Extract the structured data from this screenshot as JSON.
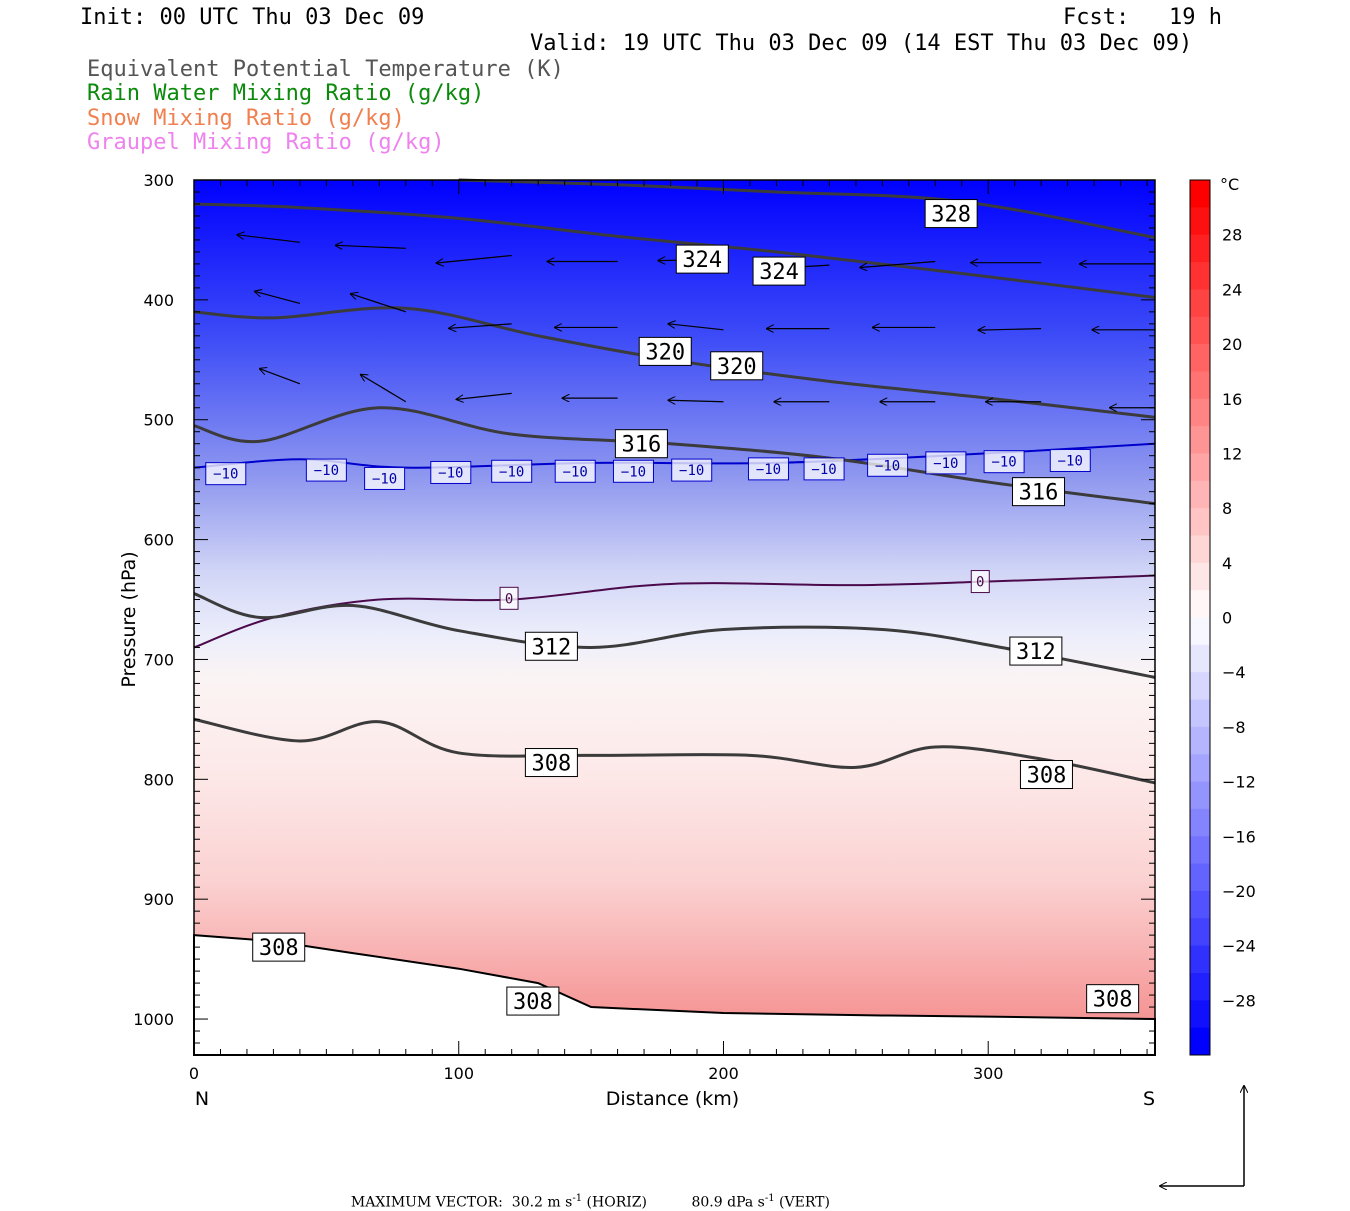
{
  "header": {
    "init": "Init: 00 UTC Thu 03 Dec 09",
    "fcst": "Fcst:   19 h",
    "valid": "Valid: 19 UTC Thu 03 Dec 09 (14 EST Thu 03 Dec 09)",
    "fields": [
      {
        "label": "Equivalent Potential Temperature (K)",
        "color": "#555555"
      },
      {
        "label": "Rain Water Mixing Ratio (g/kg)",
        "color": "#0b8a0b"
      },
      {
        "label": "Snow Mixing Ratio (g/kg)",
        "color": "#f08050"
      },
      {
        "label": "Graupel Mixing Ratio (g/kg)",
        "color": "#ee82ee"
      }
    ]
  },
  "chart_data": {
    "type": "cross-section",
    "xlabel": "Distance (km)",
    "ylabel": "Pressure (hPa)",
    "xlim": [
      0,
      363
    ],
    "ylim": [
      1030,
      300
    ],
    "xticks": [
      0,
      100,
      200,
      300
    ],
    "yticks": [
      300,
      400,
      500,
      600,
      700,
      800,
      900,
      1000
    ],
    "x_end_labels": {
      "left": "N",
      "right": "S"
    },
    "colorbar": {
      "unit": "°C",
      "ticks": [
        28,
        24,
        20,
        16,
        12,
        8,
        4,
        0,
        -4,
        -8,
        -12,
        -16,
        -20,
        -24,
        -28
      ],
      "range": [
        -32,
        32
      ],
      "colors": {
        "cold": "#0000ff",
        "neutral": "#ffffff",
        "warm": "#ff0000"
      }
    },
    "temperature_field_c": [
      {
        "p": 300,
        "t": -44
      },
      {
        "p": 400,
        "t": -32
      },
      {
        "p": 500,
        "t": -20
      },
      {
        "p": 540,
        "t": -10
      },
      {
        "p": 600,
        "t": -5
      },
      {
        "p": 640,
        "t": 0
      },
      {
        "p": 700,
        "t": 2
      },
      {
        "p": 800,
        "t": 6
      },
      {
        "p": 900,
        "t": 11
      },
      {
        "p": 990,
        "t": 15
      }
    ],
    "theta_e_contours_k": [
      {
        "value": 328,
        "points": [
          [
            100,
            300
          ],
          [
            160,
            304
          ],
          [
            220,
            310
          ],
          [
            290,
            318
          ],
          [
            363,
            348
          ]
        ]
      },
      {
        "value": 324,
        "points": [
          [
            0,
            320
          ],
          [
            40,
            323
          ],
          [
            100,
            332
          ],
          [
            160,
            347
          ],
          [
            220,
            360
          ],
          [
            290,
            378
          ],
          [
            363,
            398
          ]
        ]
      },
      {
        "value": 320,
        "points": [
          [
            0,
            410
          ],
          [
            30,
            415
          ],
          [
            80,
            407
          ],
          [
            130,
            430
          ],
          [
            180,
            450
          ],
          [
            240,
            468
          ],
          [
            300,
            482
          ],
          [
            363,
            498
          ]
        ]
      },
      {
        "value": 316,
        "points": [
          [
            0,
            505
          ],
          [
            25,
            518
          ],
          [
            70,
            490
          ],
          [
            120,
            512
          ],
          [
            180,
            520
          ],
          [
            240,
            532
          ],
          [
            300,
            552
          ],
          [
            363,
            570
          ]
        ]
      },
      {
        "value": 312,
        "points": [
          [
            0,
            645
          ],
          [
            25,
            665
          ],
          [
            60,
            655
          ],
          [
            100,
            676
          ],
          [
            150,
            690
          ],
          [
            200,
            675
          ],
          [
            260,
            675
          ],
          [
            310,
            692
          ],
          [
            363,
            715
          ]
        ]
      },
      {
        "value": 308,
        "points": [
          [
            0,
            750
          ],
          [
            40,
            768
          ],
          [
            70,
            752
          ],
          [
            100,
            778
          ],
          [
            150,
            780
          ],
          [
            210,
            780
          ],
          [
            250,
            790
          ],
          [
            280,
            773
          ],
          [
            320,
            783
          ],
          [
            363,
            803
          ]
        ]
      }
    ],
    "isotherms_c": [
      {
        "value": -10,
        "points": [
          [
            0,
            540
          ],
          [
            40,
            533
          ],
          [
            80,
            540
          ],
          [
            150,
            536
          ],
          [
            220,
            536
          ],
          [
            300,
            528
          ],
          [
            363,
            520
          ]
        ]
      },
      {
        "value": 0,
        "points": [
          [
            0,
            690
          ],
          [
            30,
            665
          ],
          [
            70,
            650
          ],
          [
            120,
            650
          ],
          [
            180,
            637
          ],
          [
            250,
            638
          ],
          [
            300,
            635
          ],
          [
            363,
            630
          ]
        ]
      }
    ],
    "contour_labels": [
      {
        "text": "328",
        "x": 286,
        "p": 328
      },
      {
        "text": "324",
        "x": 192,
        "p": 366
      },
      {
        "text": "324",
        "x": 221,
        "p": 376
      },
      {
        "text": "320",
        "x": 178,
        "p": 443
      },
      {
        "text": "320",
        "x": 205,
        "p": 455
      },
      {
        "text": "316",
        "x": 169,
        "p": 520
      },
      {
        "text": "316",
        "x": 319,
        "p": 560
      },
      {
        "text": "312",
        "x": 135,
        "p": 689
      },
      {
        "text": "312",
        "x": 318,
        "p": 693
      },
      {
        "text": "308",
        "x": 135,
        "p": 786
      },
      {
        "text": "308",
        "x": 322,
        "p": 796
      },
      {
        "text": "308",
        "x": 32,
        "p": 940
      },
      {
        "text": "308",
        "x": 128,
        "p": 985
      },
      {
        "text": "308",
        "x": 347,
        "p": 983
      },
      {
        "text": "−10",
        "x": 12,
        "p": 545
      },
      {
        "text": "−10",
        "x": 50,
        "p": 542
      },
      {
        "text": "−10",
        "x": 72,
        "p": 549
      },
      {
        "text": "−10",
        "x": 97,
        "p": 544
      },
      {
        "text": "−10",
        "x": 120,
        "p": 543
      },
      {
        "text": "−10",
        "x": 144,
        "p": 543
      },
      {
        "text": "−10",
        "x": 166,
        "p": 543
      },
      {
        "text": "−10",
        "x": 188,
        "p": 542
      },
      {
        "text": "−10",
        "x": 217,
        "p": 541
      },
      {
        "text": "−10",
        "x": 238,
        "p": 541
      },
      {
        "text": "−10",
        "x": 262,
        "p": 538
      },
      {
        "text": "−10",
        "x": 284,
        "p": 536
      },
      {
        "text": "−10",
        "x": 306,
        "p": 535
      },
      {
        "text": "−10",
        "x": 331,
        "p": 534
      },
      {
        "text": "0",
        "x": 119,
        "p": 649
      },
      {
        "text": "0",
        "x": 297,
        "p": 635
      }
    ],
    "terrain_pressure_hpa": [
      [
        0,
        930
      ],
      [
        30,
        935
      ],
      [
        60,
        945
      ],
      [
        100,
        958
      ],
      [
        130,
        970
      ],
      [
        150,
        990
      ],
      [
        200,
        995
      ],
      [
        260,
        997
      ],
      [
        300,
        998
      ],
      [
        363,
        1000
      ]
    ],
    "wind_vectors": [
      {
        "x": 40,
        "p": 352,
        "dx": -25,
        "dy": -5
      },
      {
        "x": 80,
        "p": 357,
        "dx": -28,
        "dy": -2
      },
      {
        "x": 120,
        "p": 363,
        "dx": -30,
        "dy": 5
      },
      {
        "x": 160,
        "p": 368,
        "dx": -28,
        "dy": 0
      },
      {
        "x": 200,
        "p": 366,
        "dx": -26,
        "dy": 1
      },
      {
        "x": 240,
        "p": 371,
        "dx": -20,
        "dy": 2
      },
      {
        "x": 280,
        "p": 368,
        "dx": -30,
        "dy": 4
      },
      {
        "x": 320,
        "p": 369,
        "dx": -28,
        "dy": 0
      },
      {
        "x": 363,
        "p": 370,
        "dx": -30,
        "dy": 0
      },
      {
        "x": 40,
        "p": 403,
        "dx": -18,
        "dy": -8
      },
      {
        "x": 80,
        "p": 410,
        "dx": -22,
        "dy": -12
      },
      {
        "x": 120,
        "p": 420,
        "dx": -25,
        "dy": 3
      },
      {
        "x": 160,
        "p": 423,
        "dx": -25,
        "dy": 0
      },
      {
        "x": 200,
        "p": 425,
        "dx": -22,
        "dy": -4
      },
      {
        "x": 240,
        "p": 424,
        "dx": -25,
        "dy": 0
      },
      {
        "x": 280,
        "p": 423,
        "dx": -25,
        "dy": 0
      },
      {
        "x": 320,
        "p": 424,
        "dx": -25,
        "dy": 1
      },
      {
        "x": 363,
        "p": 425,
        "dx": -25,
        "dy": 0
      },
      {
        "x": 40,
        "p": 470,
        "dx": -16,
        "dy": -10
      },
      {
        "x": 80,
        "p": 485,
        "dx": -18,
        "dy": -18
      },
      {
        "x": 120,
        "p": 478,
        "dx": -22,
        "dy": 4
      },
      {
        "x": 160,
        "p": 482,
        "dx": -22,
        "dy": 0
      },
      {
        "x": 200,
        "p": 485,
        "dx": -22,
        "dy": -1
      },
      {
        "x": 240,
        "p": 485,
        "dx": -22,
        "dy": 0
      },
      {
        "x": 280,
        "p": 485,
        "dx": -22,
        "dy": 0
      },
      {
        "x": 320,
        "p": 485,
        "dx": -22,
        "dy": 0
      },
      {
        "x": 363,
        "p": 490,
        "dx": -18,
        "dy": 0
      }
    ],
    "max_vector": {
      "label": "MAXIMUM VECTOR:",
      "horiz": "30.2 m s",
      "horiz_unit": "(HORIZ)",
      "vert": "80.9 dPa s",
      "vert_unit": "(VERT)",
      "exp": "-1"
    }
  }
}
